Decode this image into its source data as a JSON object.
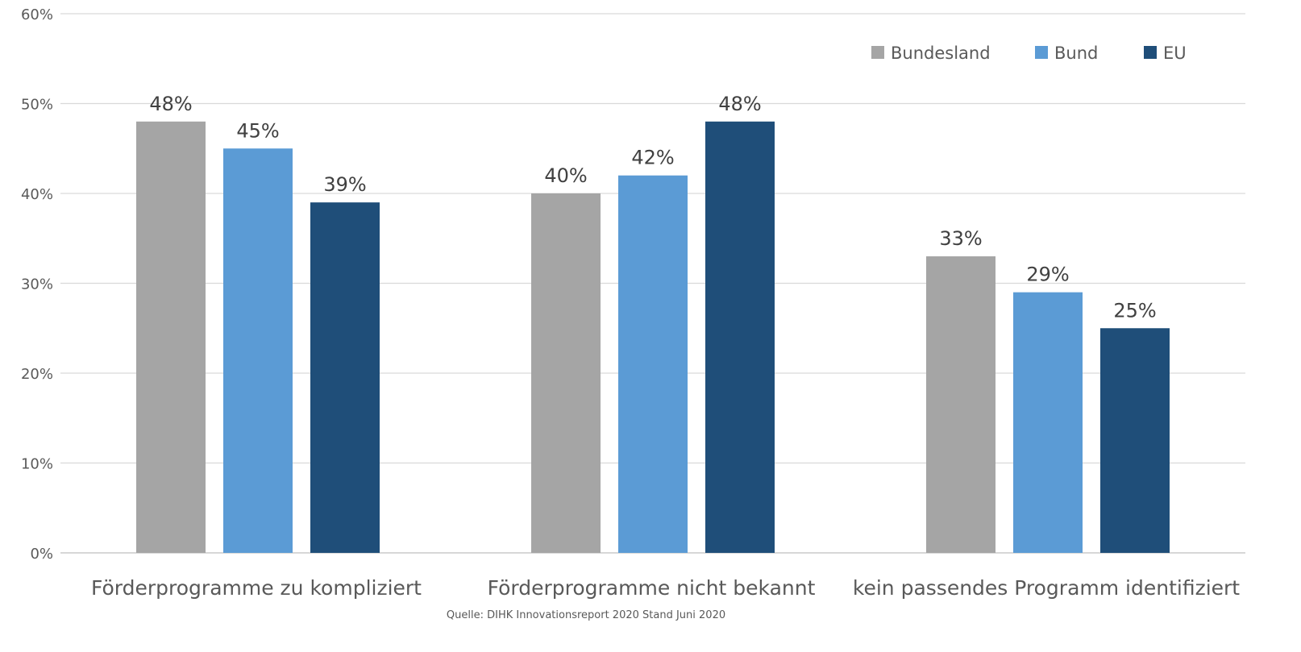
{
  "chart_data": {
    "type": "bar",
    "categories": [
      "Förderprogramme zu kompliziert",
      "Förderprogramme nicht bekannt",
      "kein passendes Programm identifiziert"
    ],
    "series": [
      {
        "name": "Bundesland",
        "color": "#a5a5a5",
        "values": [
          48,
          40,
          33
        ]
      },
      {
        "name": "Bund",
        "color": "#5b9bd5",
        "values": [
          45,
          42,
          29
        ]
      },
      {
        "name": "EU",
        "color": "#1f4e79",
        "values": [
          39,
          48,
          25
        ]
      }
    ],
    "value_suffix": "%",
    "ylim": [
      0,
      60
    ],
    "yticks": [
      "0%",
      "10%",
      "20%",
      "30%",
      "40%",
      "50%",
      "60%"
    ],
    "grid": true,
    "legend": "top-right",
    "source": "Quelle: DIHK Innovationsreport 2020 Stand Juni 2020"
  }
}
